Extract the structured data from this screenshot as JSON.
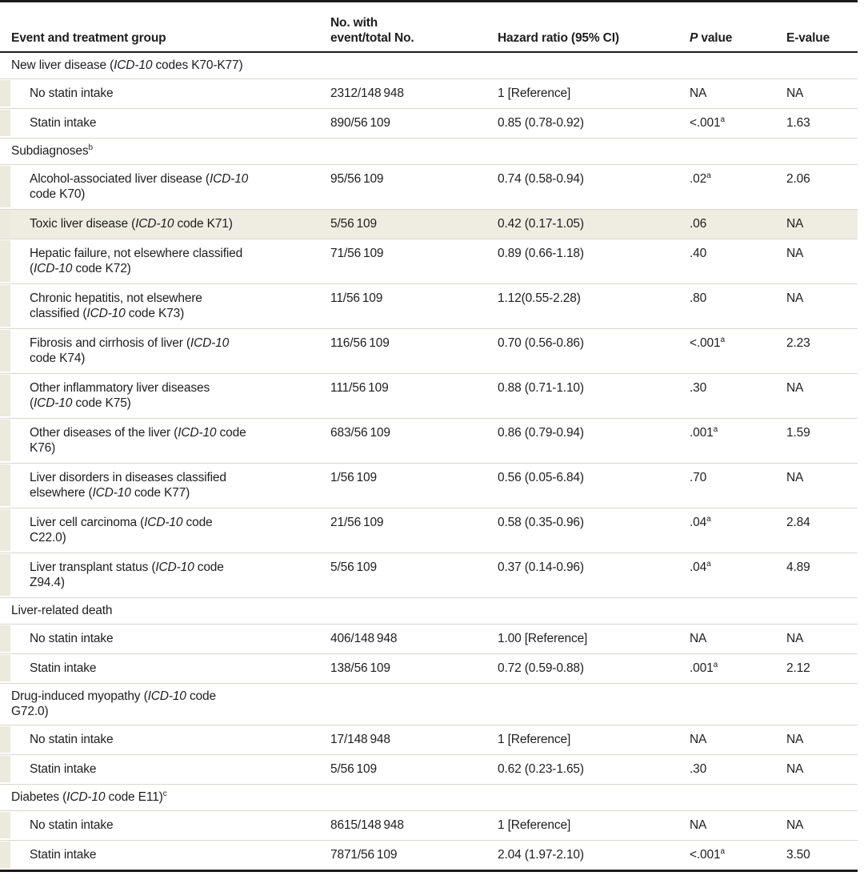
{
  "colors": {
    "rule_dark": "#1b1b1b",
    "rule_light": "#d9d7d0",
    "row_highlight": "#efede1",
    "indent_marker": "#ece9dd",
    "text": "#1e1e1e"
  },
  "table": {
    "columns": [
      "Event and treatment group",
      "No. with\nevent/total No.",
      "Hazard ratio (95% CI)",
      "*P* value",
      "E-value"
    ],
    "sections": [
      {
        "header": "New liver disease (*ICD-10* codes K70-K77)",
        "rows": [
          {
            "label": "No statin intake",
            "events": "2312/148 948",
            "hr": "1 [Reference]",
            "p": "NA",
            "e": "NA"
          },
          {
            "label": "Statin intake",
            "events": "890/56 109",
            "hr": "0.85 (0.78-0.92)",
            "p": "<.001^a^",
            "e": "1.63"
          }
        ]
      },
      {
        "header": "Subdiagnoses^b^",
        "rows": [
          {
            "label": "Alcohol-associated liver disease (*ICD-10*\ncode K70)",
            "events": "95/56 109",
            "hr": "0.74 (0.58-0.94)",
            "p": ".02^a^",
            "e": "2.06"
          },
          {
            "label": "Toxic liver disease (*ICD-10* code K71)",
            "events": "5/56 109",
            "hr": "0.42 (0.17-1.05)",
            "p": ".06",
            "e": "NA",
            "highlight": true
          },
          {
            "label": "Hepatic failure, not elsewhere classified\n(*ICD-10* code K72)",
            "events": "71/56 109",
            "hr": "0.89 (0.66-1.18)",
            "p": ".40",
            "e": "NA"
          },
          {
            "label": "Chronic hepatitis, not elsewhere\nclassified (*ICD-10* code K73)",
            "events": "11/56 109",
            "hr": "1.12(0.55-2.28)",
            "p": ".80",
            "e": "NA"
          },
          {
            "label": "Fibrosis and cirrhosis of liver (*ICD-10*\ncode K74)",
            "events": "116/56 109",
            "hr": "0.70 (0.56-0.86)",
            "p": "<.001^a^",
            "e": "2.23"
          },
          {
            "label": "Other inflammatory liver diseases\n(*ICD-10* code K75)",
            "events": "111/56 109",
            "hr": "0.88 (0.71-1.10)",
            "p": ".30",
            "e": "NA"
          },
          {
            "label": "Other diseases of the liver (*ICD-10* code\nK76)",
            "events": "683/56 109",
            "hr": "0.86 (0.79-0.94)",
            "p": ".001^a^",
            "e": "1.59"
          },
          {
            "label": "Liver disorders in diseases classified\nelsewhere (*ICD-10* code K77)",
            "events": "1/56 109",
            "hr": "0.56 (0.05-6.84)",
            "p": ".70",
            "e": "NA"
          },
          {
            "label": "Liver cell carcinoma (*ICD-10* code\nC22.0)",
            "events": "21/56 109",
            "hr": "0.58 (0.35-0.96)",
            "p": ".04^a^",
            "e": "2.84"
          },
          {
            "label": "Liver transplant status (*ICD-10* code\nZ94.4)",
            "events": "5/56 109",
            "hr": "0.37 (0.14-0.96)",
            "p": ".04^a^",
            "e": "4.89"
          }
        ]
      },
      {
        "header": "Liver-related death",
        "rows": [
          {
            "label": "No statin intake",
            "events": "406/148 948",
            "hr": "1.00 [Reference]",
            "p": "NA",
            "e": "NA"
          },
          {
            "label": "Statin intake",
            "events": "138/56 109",
            "hr": "0.72 (0.59-0.88)",
            "p": ".001^a^",
            "e": "2.12"
          }
        ]
      },
      {
        "header": "Drug-induced myopathy (*ICD-10* code\nG72.0)",
        "rows": [
          {
            "label": "No statin intake",
            "events": "17/148 948",
            "hr": "1 [Reference]",
            "p": "NA",
            "e": "NA"
          },
          {
            "label": "Statin intake",
            "events": "5/56 109",
            "hr": "0.62 (0.23-1.65)",
            "p": ".30",
            "e": "NA"
          }
        ]
      },
      {
        "header": "Diabetes (*ICD-10* code E11)^c^",
        "rows": [
          {
            "label": "No statin intake",
            "events": "8615/148 948",
            "hr": "1 [Reference]",
            "p": "NA",
            "e": "NA"
          },
          {
            "label": "Statin intake",
            "events": "7871/56 109",
            "hr": "2.04 (1.97-2.10)",
            "p": "<.001^a^",
            "e": "3.50"
          }
        ]
      }
    ]
  }
}
